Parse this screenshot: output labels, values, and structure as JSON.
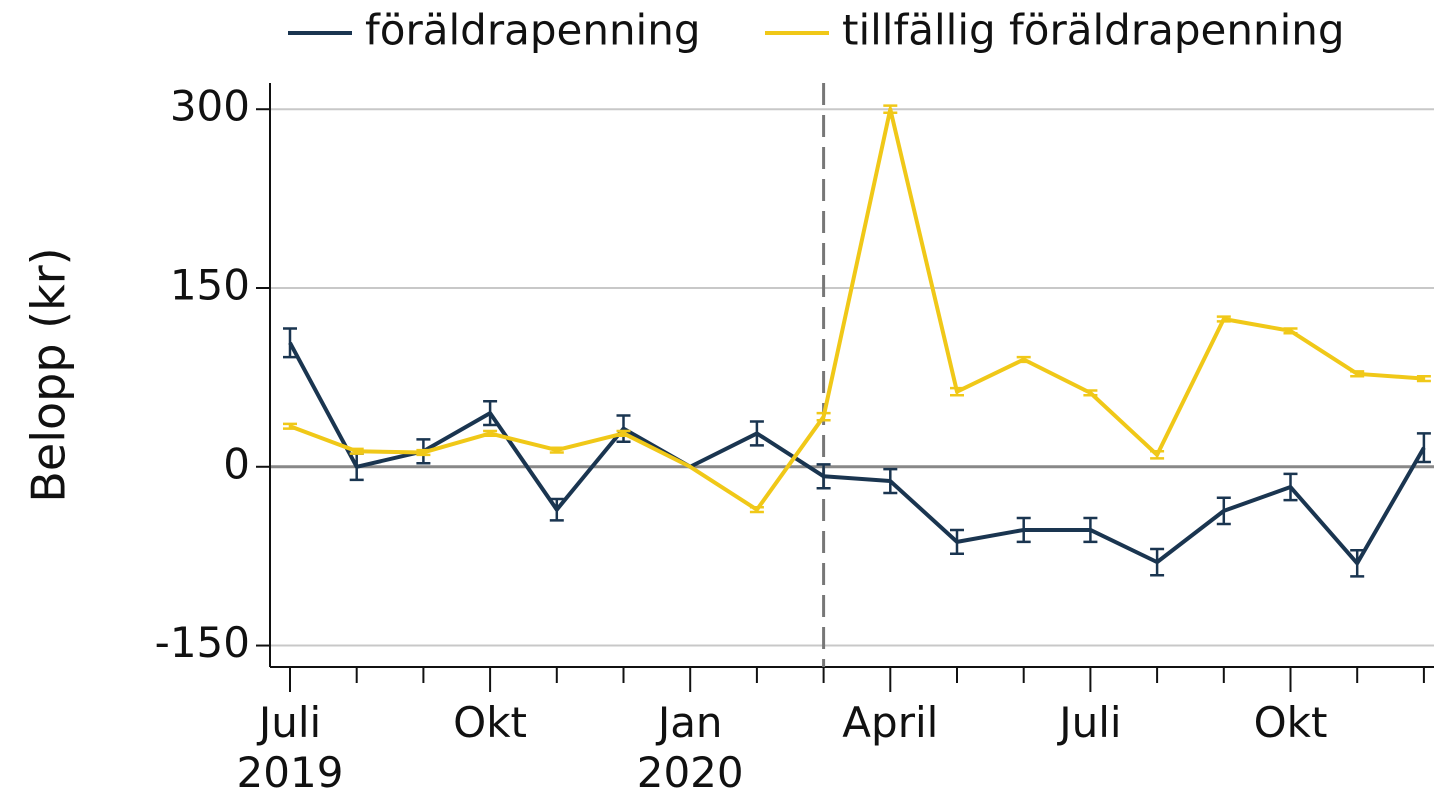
{
  "chart_data": {
    "type": "line",
    "y_label": "Belopp (kr)",
    "categories": [
      "Juli\n2019",
      null,
      null,
      "Okt",
      null,
      null,
      "Jan\n2020",
      null,
      null,
      "April",
      null,
      null,
      "Juli",
      null,
      null,
      "Okt",
      null,
      null
    ],
    "series": [
      {
        "name": "föräldrapenning",
        "color": "#1a3550",
        "values": [
          104,
          0,
          13,
          45,
          -36,
          32,
          0,
          28,
          -8,
          -12,
          -63,
          -53,
          -53,
          -80,
          -37,
          -17,
          -81,
          16
        ],
        "errors": [
          12,
          11,
          10,
          10,
          9,
          11,
          0,
          10,
          10,
          10,
          10,
          10,
          10,
          11,
          11,
          11,
          11,
          12
        ]
      },
      {
        "name": "tillfällig föräldrapenning",
        "color": "#f0c818",
        "values": [
          34,
          13,
          12,
          28,
          14,
          28,
          0,
          -36,
          42,
          300,
          63,
          90,
          62,
          10,
          124,
          114,
          78,
          74
        ],
        "errors": [
          2,
          2,
          2,
          2,
          2,
          2,
          0,
          2,
          3,
          3,
          3,
          2,
          2,
          3,
          2,
          2,
          2,
          2
        ]
      }
    ],
    "vline_at": 8,
    "ylim": [
      -168,
      322
    ],
    "yticks": [
      -150,
      0,
      150,
      300
    ],
    "grid": true,
    "legend": "top"
  }
}
